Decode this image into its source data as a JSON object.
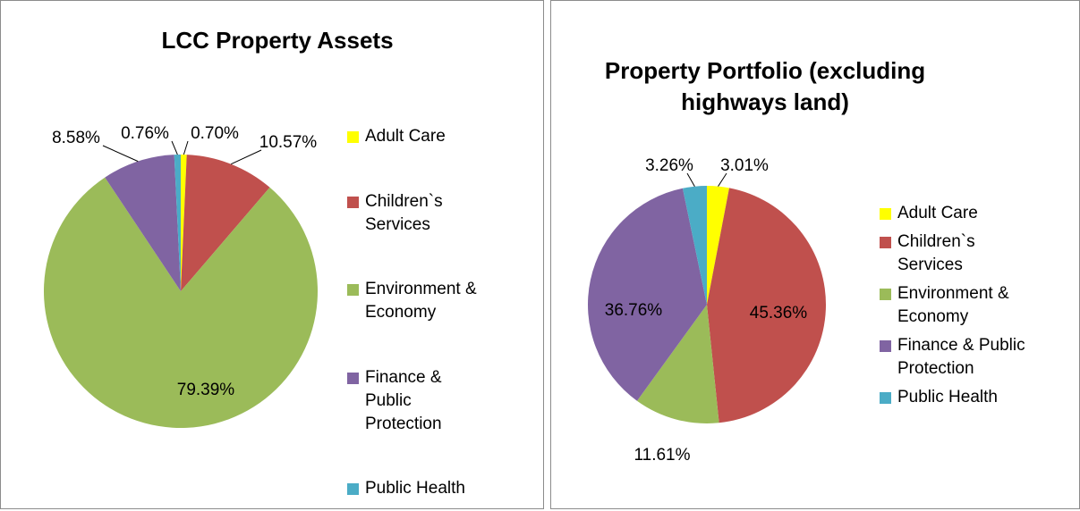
{
  "chart_data": [
    {
      "type": "pie",
      "title": "LCC Property Assets",
      "categories": [
        "Adult Care",
        "Children`s Services",
        "Environment & Economy",
        "Finance & Public Protection",
        "Public Health"
      ],
      "values": [
        0.7,
        10.57,
        79.39,
        8.58,
        0.76
      ],
      "value_labels": [
        "0.70%",
        "10.57%",
        "79.39%",
        "8.58%",
        "0.76%"
      ],
      "colors": [
        "#ffff00",
        "#c0504d",
        "#9bbb59",
        "#8064a2",
        "#4bacc6"
      ]
    },
    {
      "type": "pie",
      "title": "Property Portfolio (excluding highways land)",
      "categories": [
        "Adult Care",
        "Children`s Services",
        "Environment & Economy",
        "Finance & Public Protection",
        "Public Health"
      ],
      "values": [
        3.01,
        45.36,
        11.61,
        36.76,
        3.26
      ],
      "value_labels": [
        "3.01%",
        "45.36%",
        "11.61%",
        "36.76%",
        "3.26%"
      ],
      "colors": [
        "#ffff00",
        "#c0504d",
        "#9bbb59",
        "#8064a2",
        "#4bacc6"
      ]
    }
  ]
}
